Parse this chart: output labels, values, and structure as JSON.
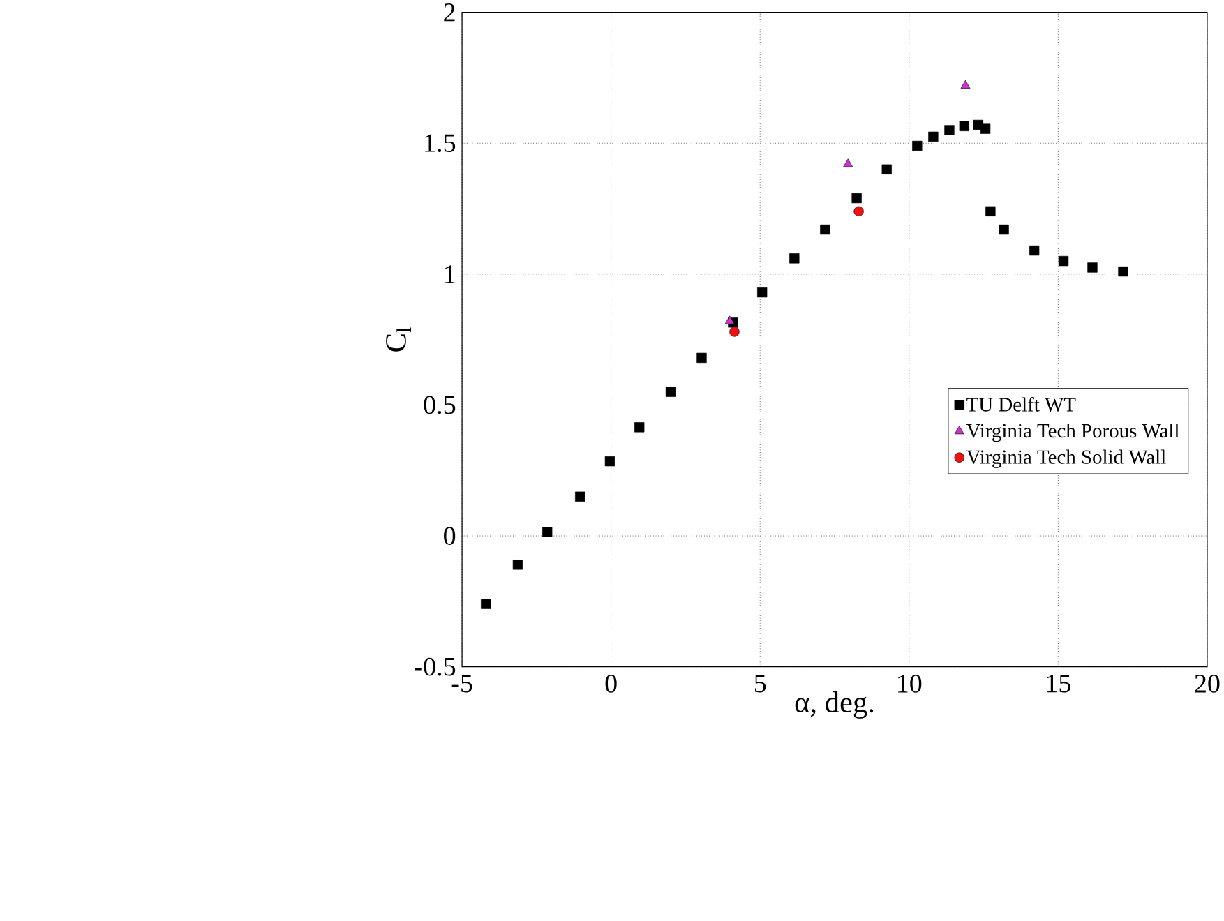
{
  "chart_data": {
    "type": "scatter",
    "xlabel": "α, deg.",
    "ylabel": "C$_{l}$",
    "xlim": [
      -5,
      20
    ],
    "ylim": [
      -0.5,
      2
    ],
    "xticks": [
      -5,
      0,
      5,
      10,
      15,
      20
    ],
    "yticks": [
      -0.5,
      0,
      0.5,
      1,
      1.5,
      2
    ],
    "grid": true,
    "legend": "right",
    "series": [
      {
        "name": "TU Delft WT",
        "color": "#000000",
        "marker": "square",
        "x": [
          -4.2,
          -3.13,
          -2.14,
          -1.04,
          -0.04,
          0.95,
          2.0,
          3.04,
          4.09,
          5.07,
          6.15,
          7.18,
          8.24,
          9.25,
          10.27,
          10.81,
          11.35,
          11.85,
          12.32,
          12.56,
          12.73,
          13.18,
          14.2,
          15.18,
          16.15,
          17.18
        ],
        "values": [
          -0.26,
          -0.11,
          0.015,
          0.15,
          0.285,
          0.415,
          0.55,
          0.68,
          0.815,
          0.93,
          1.06,
          1.17,
          1.29,
          1.4,
          1.49,
          1.525,
          1.55,
          1.565,
          1.57,
          1.555,
          1.24,
          1.17,
          1.09,
          1.05,
          1.025,
          1.01
        ]
      },
      {
        "name": "Virginia Tech Porous Wall",
        "color": "#cc33cc",
        "marker": "triangle",
        "x": [
          3.98,
          7.95,
          11.89
        ],
        "values": [
          0.82,
          1.42,
          1.72
        ]
      },
      {
        "name": "Virginia Tech Solid Wall",
        "color": "#ee1111",
        "marker": "circle",
        "x": [
          4.14,
          8.31
        ],
        "values": [
          0.78,
          1.24
        ]
      }
    ]
  }
}
